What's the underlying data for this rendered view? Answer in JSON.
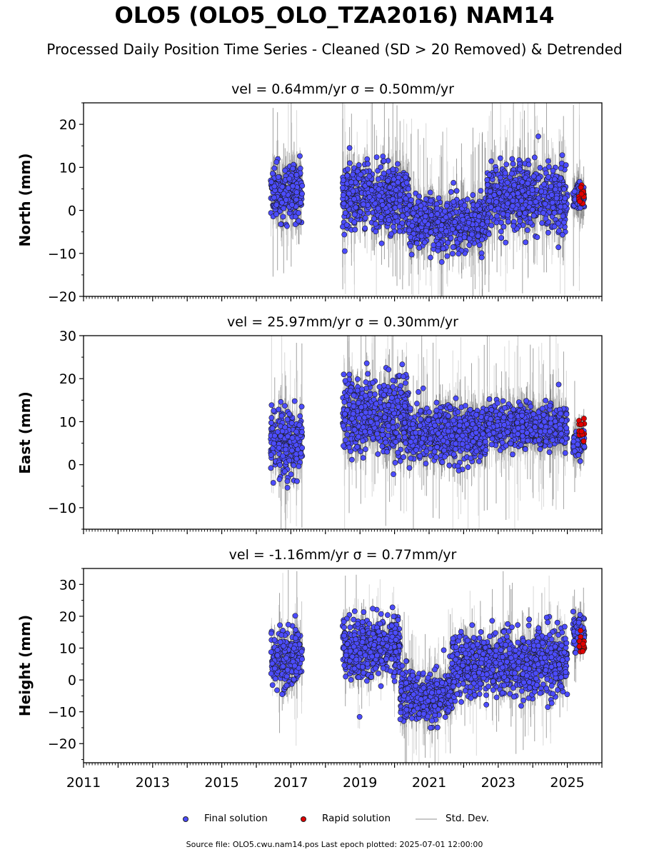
{
  "page": {
    "title": "OLO5 (OLO5_OLO_TZA2016) NAM14",
    "subtitle": "Processed Daily Position Time Series - Cleaned (SD > 20 Removed) & Detrended",
    "footer": "Source file: OLO5.cwu.nam14.pos  Last epoch plotted: 2025-07-01 12:00:00"
  },
  "legend": {
    "final": "Final solution",
    "rapid": "Rapid solution",
    "std": "Std. Dev."
  },
  "colors": {
    "final": "#4c4cff",
    "rapid": "#e00000",
    "std": "#7a7a7a",
    "std_light": "#c8c8c8"
  },
  "chart_data": [
    {
      "type": "scatter",
      "title": "vel = 0.64mm/yr   σ = 0.50mm/yr",
      "ylabel": "North (mm)",
      "xlim": [
        "2011-01-01",
        "2026-01-01"
      ],
      "ylim": [
        -20,
        25
      ],
      "yticks": [
        -20,
        -10,
        0,
        10,
        20
      ],
      "xticks": [
        "2011",
        "2013",
        "2015",
        "2017",
        "2019",
        "2021",
        "2023",
        "2025"
      ],
      "grid": false,
      "series": [
        {
          "name": "Final solution",
          "segments": [
            {
              "start": "2016-06-01",
              "end": "2017-05-01",
              "mean": 4,
              "spread": 4
            },
            {
              "start": "2018-07-01",
              "end": "2020-06-01",
              "mean": 3,
              "spread": 5
            },
            {
              "start": "2020-06-01",
              "end": "2022-09-01",
              "mean": -3,
              "spread": 4
            },
            {
              "start": "2022-09-01",
              "end": "2025-01-01",
              "mean": 3,
              "spread": 5
            },
            {
              "start": "2025-03-01",
              "end": "2025-07-01",
              "mean": 3,
              "spread": 2
            }
          ]
        },
        {
          "name": "Rapid solution",
          "segments": [
            {
              "start": "2025-05-01",
              "end": "2025-07-01",
              "mean": 3,
              "spread": 1.5
            }
          ]
        }
      ]
    },
    {
      "type": "scatter",
      "title": "vel = 25.97mm/yr   σ = 0.30mm/yr",
      "ylabel": "East (mm)",
      "xlim": [
        "2011-01-01",
        "2026-01-01"
      ],
      "ylim": [
        -15,
        30
      ],
      "yticks": [
        -10,
        0,
        10,
        20,
        30
      ],
      "xticks": [
        "2011",
        "2013",
        "2015",
        "2017",
        "2019",
        "2021",
        "2023",
        "2025"
      ],
      "grid": false,
      "series": [
        {
          "name": "Final solution",
          "segments": [
            {
              "start": "2016-06-01",
              "end": "2017-05-01",
              "mean": 5,
              "spread": 5
            },
            {
              "start": "2018-07-01",
              "end": "2020-06-01",
              "mean": 11,
              "spread": 6
            },
            {
              "start": "2020-06-01",
              "end": "2022-09-01",
              "mean": 7,
              "spread": 4
            },
            {
              "start": "2022-09-01",
              "end": "2025-01-01",
              "mean": 9,
              "spread": 3
            },
            {
              "start": "2025-03-01",
              "end": "2025-07-01",
              "mean": 5,
              "spread": 2
            }
          ]
        },
        {
          "name": "Rapid solution",
          "segments": [
            {
              "start": "2025-05-01",
              "end": "2025-07-01",
              "mean": 8,
              "spread": 1.5
            }
          ]
        }
      ]
    },
    {
      "type": "scatter",
      "title": "vel = -1.16mm/yr   σ = 0.77mm/yr",
      "ylabel": "Height (mm)",
      "xlim": [
        "2011-01-01",
        "2026-01-01"
      ],
      "ylim": [
        -26,
        35
      ],
      "yticks": [
        -20,
        -10,
        0,
        10,
        20,
        30
      ],
      "xticks": [
        "2011",
        "2013",
        "2015",
        "2017",
        "2019",
        "2021",
        "2023",
        "2025"
      ],
      "grid": false,
      "series": [
        {
          "name": "Final solution",
          "segments": [
            {
              "start": "2016-06-01",
              "end": "2017-05-01",
              "mean": 7,
              "spread": 6
            },
            {
              "start": "2018-07-01",
              "end": "2020-03-01",
              "mean": 10,
              "spread": 6
            },
            {
              "start": "2020-03-01",
              "end": "2021-09-01",
              "mean": -5,
              "spread": 5
            },
            {
              "start": "2021-09-01",
              "end": "2023-09-01",
              "mean": 5,
              "spread": 6
            },
            {
              "start": "2023-09-01",
              "end": "2025-01-01",
              "mean": 5,
              "spread": 7
            },
            {
              "start": "2025-03-01",
              "end": "2025-07-01",
              "mean": 15,
              "spread": 4
            }
          ]
        },
        {
          "name": "Rapid solution",
          "segments": [
            {
              "start": "2025-05-01",
              "end": "2025-07-01",
              "mean": 11,
              "spread": 3
            }
          ]
        }
      ]
    }
  ]
}
